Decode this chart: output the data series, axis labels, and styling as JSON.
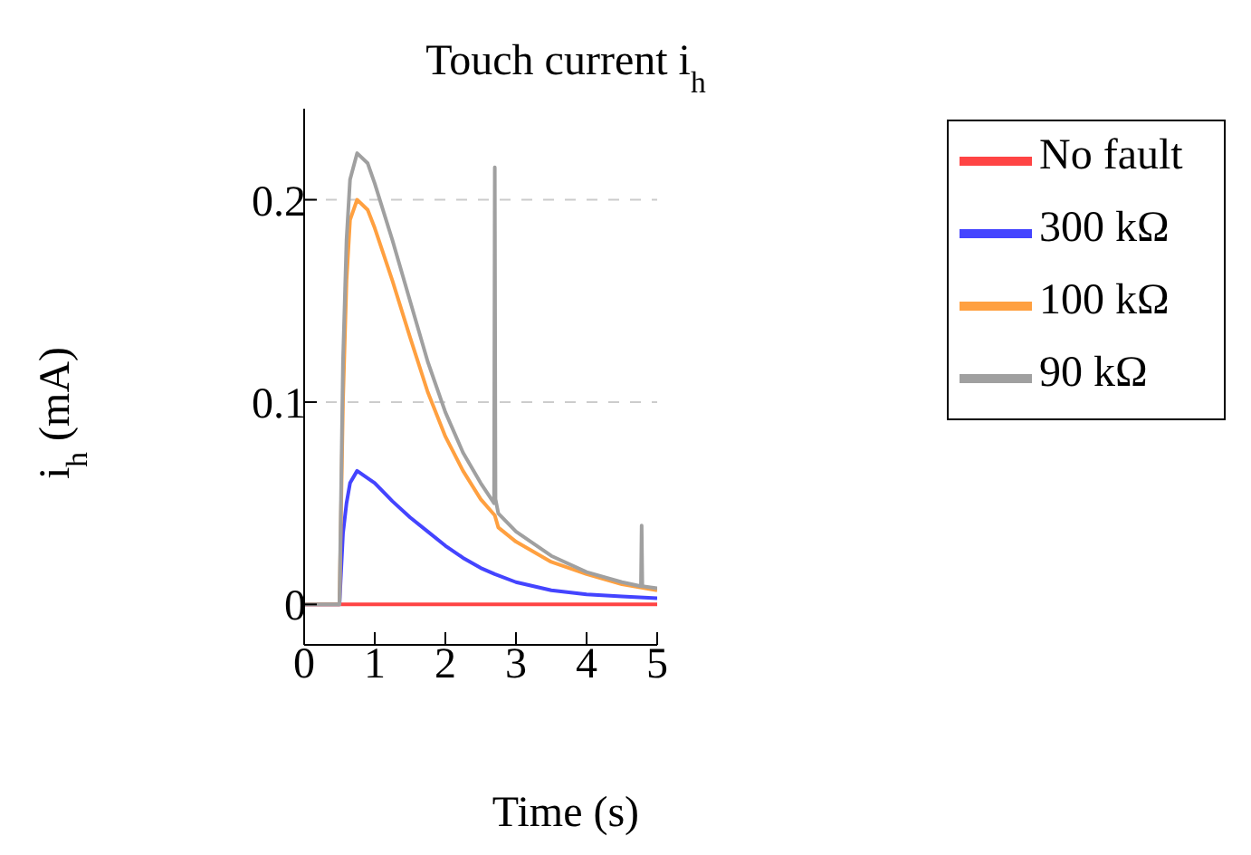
{
  "chart_data": {
    "type": "line",
    "title": "Touch current i$_{h}$",
    "xlabel": "Time (s)",
    "ylabel": "i$_{h}$ (mA)",
    "xlim": [
      0,
      5
    ],
    "xticks": [
      0,
      1,
      2,
      3,
      4,
      5
    ],
    "ylim": [
      -0.02,
      0.245
    ],
    "yticks": [
      0,
      0.1,
      0.2
    ],
    "grid": "y",
    "legend": "right",
    "marker": "none",
    "line_style": "solid",
    "series": [
      {
        "name": "No fault",
        "color": "#ff4444",
        "x": [
          0,
          5
        ],
        "values": [
          0,
          0
        ]
      },
      {
        "name": "300 kΩ",
        "color": "#4444ff",
        "x": [
          0,
          0.5,
          0.55,
          0.6,
          0.65,
          0.75,
          1.0,
          1.25,
          1.5,
          1.75,
          2.0,
          2.25,
          2.5,
          2.7,
          3.0,
          3.5,
          4.0,
          4.5,
          5
        ],
        "values": [
          0,
          0,
          0.035,
          0.05,
          0.06,
          0.066,
          0.06,
          0.051,
          0.043,
          0.036,
          0.029,
          0.023,
          0.018,
          0.015,
          0.011,
          0.007,
          0.005,
          0.004,
          0.003
        ]
      },
      {
        "name": "100 kΩ",
        "color": "#ffa040",
        "x": [
          0,
          0.5,
          0.55,
          0.6,
          0.65,
          0.75,
          0.9,
          1.0,
          1.25,
          1.5,
          1.75,
          2.0,
          2.25,
          2.5,
          2.7,
          2.75,
          3.0,
          3.5,
          4.0,
          4.5,
          5
        ],
        "values": [
          0,
          0,
          0.1,
          0.16,
          0.19,
          0.2,
          0.195,
          0.186,
          0.16,
          0.132,
          0.105,
          0.083,
          0.066,
          0.052,
          0.044,
          0.038,
          0.031,
          0.021,
          0.015,
          0.01,
          0.007
        ]
      },
      {
        "name": "90 kΩ",
        "color": "#a0a0a0",
        "x": [
          0,
          0.5,
          0.55,
          0.6,
          0.65,
          0.75,
          0.9,
          1.0,
          1.25,
          1.5,
          1.75,
          2.0,
          2.25,
          2.5,
          2.69,
          2.7,
          2.71,
          2.75,
          3.0,
          3.5,
          4.0,
          4.5,
          4.77,
          4.78,
          4.79,
          5
        ],
        "values": [
          0,
          0,
          0.12,
          0.18,
          0.21,
          0.223,
          0.218,
          0.208,
          0.18,
          0.15,
          0.12,
          0.095,
          0.075,
          0.06,
          0.05,
          0.216,
          0.052,
          0.045,
          0.036,
          0.024,
          0.016,
          0.011,
          0.009,
          0.039,
          0.009,
          0.008
        ]
      }
    ]
  }
}
